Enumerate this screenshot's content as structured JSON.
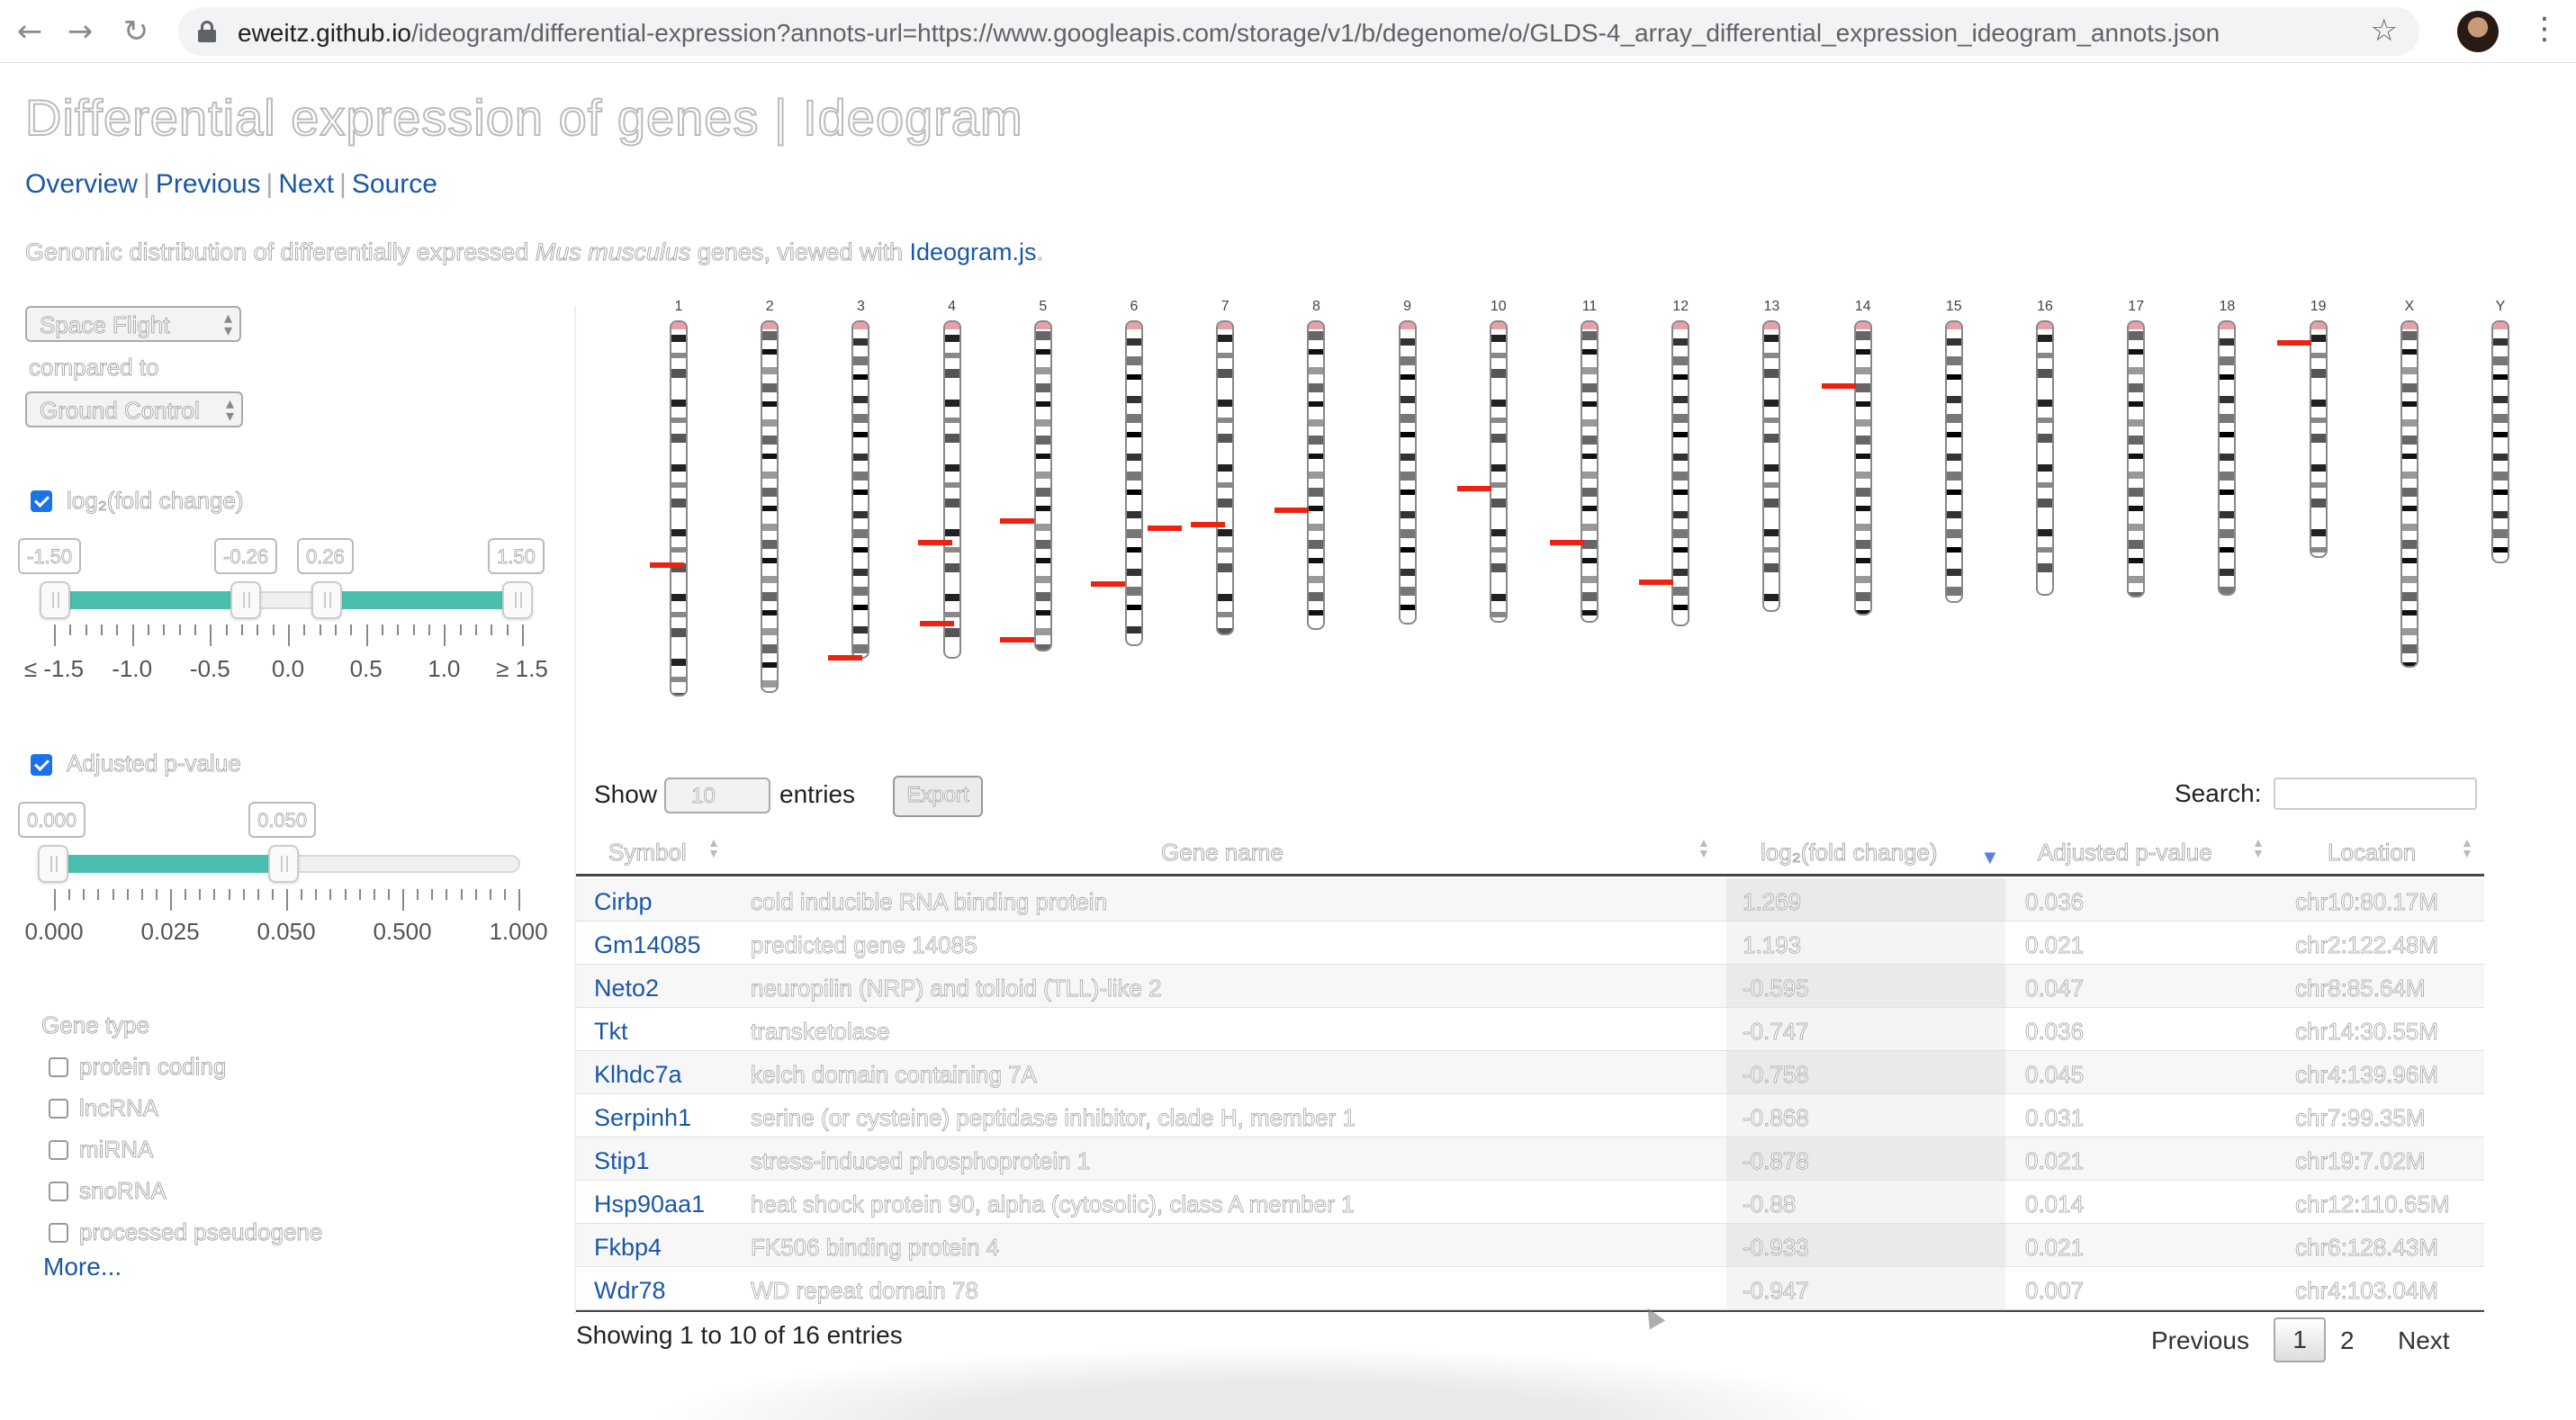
{
  "browser": {
    "url_host": "eweitz.github.io",
    "url_path": "/ideogram/differential-expression?annots-url=https://www.googleapis.com/storage/v1/b/degenome/o/GLDS-4_array_differential_expression_ideogram_annots.json"
  },
  "page": {
    "title": "Differential expression of genes | Ideogram",
    "nav": {
      "overview": "Overview",
      "previous": "Previous",
      "next": "Next",
      "source": "Source"
    },
    "description": {
      "before": "Genomic distribution of differentially expressed ",
      "species": "Mus musculus",
      "middle": " genes, viewed with ",
      "link": "Ideogram.js",
      "after": "."
    }
  },
  "filters": {
    "condition": "Space Flight",
    "compared_to_label": "compared to",
    "control": "Ground Control",
    "fold_change": {
      "label": "log₂(fold change)",
      "checked": true,
      "min_val": "-1.50",
      "low_val": "-0.26",
      "high_val": "0.26",
      "max_val": "1.50",
      "tick_labels": [
        "≤ -1.5",
        "-1.0",
        "-0.5",
        "0.0",
        "0.5",
        "1.0",
        "≥ 1.5"
      ]
    },
    "pvalue": {
      "label": "Adjusted p-value",
      "checked": true,
      "min_val": "0.000",
      "max_val": "0.050",
      "tick_labels": [
        "0.000",
        "0.025",
        "0.050",
        "0.500",
        "1.000"
      ]
    },
    "gene_type": {
      "label": "Gene type",
      "options": [
        "protein coding",
        "lncRNA",
        "miRNA",
        "snoRNA",
        "processed pseudogene"
      ],
      "more": "More..."
    }
  },
  "ideogram": {
    "chromosomes": [
      "1",
      "2",
      "3",
      "4",
      "5",
      "6",
      "7",
      "8",
      "9",
      "10",
      "11",
      "12",
      "13",
      "14",
      "15",
      "16",
      "17",
      "18",
      "19",
      "X",
      "Y"
    ]
  },
  "table": {
    "show_label": "Show",
    "page_length": "10",
    "entries_label": "entries",
    "export_label": "Export",
    "search_label": "Search:",
    "columns": [
      "Symbol",
      "Gene name",
      "log₂(fold change)",
      "Adjusted p-value",
      "Location"
    ],
    "rows": [
      {
        "symbol": "Cirbp",
        "name": "cold inducible RNA binding protein",
        "fc": "1.269",
        "p": "0.036",
        "loc": "chr10:80.17M"
      },
      {
        "symbol": "Gm14085",
        "name": "predicted gene 14085",
        "fc": "1.193",
        "p": "0.021",
        "loc": "chr2:122.48M"
      },
      {
        "symbol": "Neto2",
        "name": "neuropilin (NRP) and tolloid (TLL)-like 2",
        "fc": "-0.595",
        "p": "0.047",
        "loc": "chr8:85.64M"
      },
      {
        "symbol": "Tkt",
        "name": "transketolase",
        "fc": "-0.747",
        "p": "0.036",
        "loc": "chr14:30.55M"
      },
      {
        "symbol": "Klhdc7a",
        "name": "kelch domain containing 7A",
        "fc": "-0.758",
        "p": "0.045",
        "loc": "chr4:139.96M"
      },
      {
        "symbol": "Serpinh1",
        "name": "serine (or cysteine) peptidase inhibitor, clade H, member 1",
        "fc": "-0.868",
        "p": "0.031",
        "loc": "chr7:99.35M"
      },
      {
        "symbol": "Stip1",
        "name": "stress-induced phosphoprotein 1",
        "fc": "-0.878",
        "p": "0.021",
        "loc": "chr19:7.02M"
      },
      {
        "symbol": "Hsp90aa1",
        "name": "heat shock protein 90, alpha (cytosolic), class A member 1",
        "fc": "-0.88",
        "p": "0.014",
        "loc": "chr12:110.65M"
      },
      {
        "symbol": "Fkbp4",
        "name": "FK506 binding protein 4",
        "fc": "-0.933",
        "p": "0.021",
        "loc": "chr6:128.43M"
      },
      {
        "symbol": "Wdr78",
        "name": "WD repeat domain 78",
        "fc": "-0.947",
        "p": "0.007",
        "loc": "chr4:103.04M"
      }
    ],
    "info": "Showing 1 to 10 of 16 entries",
    "pager": {
      "previous": "Previous",
      "current": "1",
      "page2": "2",
      "next": "Next"
    }
  }
}
